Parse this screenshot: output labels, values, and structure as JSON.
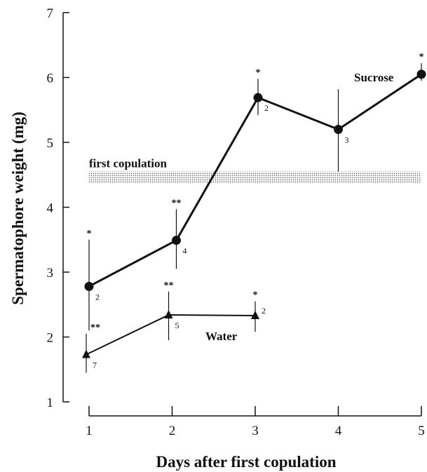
{
  "chart_data": {
    "type": "line",
    "xlabel": "Days after first copulation",
    "ylabel": "Spermatophore weight (mg)",
    "xlim": [
      1,
      5
    ],
    "ylim": [
      1,
      7
    ],
    "x_ticks": [
      1,
      2,
      3,
      4,
      5
    ],
    "y_ticks": [
      1,
      2,
      3,
      4,
      5,
      6,
      7
    ],
    "grid": false,
    "series": [
      {
        "name": "Sucrose",
        "marker": "circle",
        "x": [
          1,
          2,
          3,
          4,
          5
        ],
        "y": [
          2.78,
          3.49,
          5.69,
          5.2,
          6.05
        ],
        "error_low": [
          2.1,
          3.05,
          5.42,
          4.55,
          5.95
        ],
        "error_high": [
          3.5,
          3.97,
          5.98,
          5.82,
          6.22
        ],
        "significance": [
          "*",
          "**",
          "*",
          "",
          "*"
        ],
        "n": [
          "2",
          "4",
          "2",
          "3",
          "2"
        ]
      },
      {
        "name": "Water",
        "marker": "triangle",
        "x": [
          1,
          2,
          3
        ],
        "y": [
          1.73,
          2.34,
          2.33
        ],
        "error_low": [
          1.45,
          1.95,
          2.08
        ],
        "error_high": [
          2.05,
          2.7,
          2.55
        ],
        "significance": [
          "**",
          "**",
          "*"
        ],
        "n": [
          "7",
          "5",
          "2"
        ]
      }
    ],
    "band": {
      "label": "first copulation",
      "y_low": 4.38,
      "y_high": 4.55
    }
  }
}
